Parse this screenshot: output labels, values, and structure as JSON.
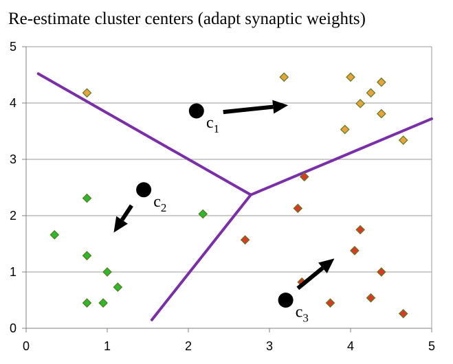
{
  "title": "Re-estimate cluster centers (adapt synaptic weights)",
  "colors": {
    "orange": "#E8A33C",
    "red": "#D93A26",
    "green": "#2DB82D",
    "marker_edge": "#5A7A1E",
    "boundary": "#7A2FA8",
    "arrow": "#000000",
    "grid": "#999999"
  },
  "chart_data": {
    "type": "scatter",
    "title": "Re-estimate cluster centers (adapt synaptic weights)",
    "xlim": [
      0,
      5
    ],
    "ylim": [
      0,
      5
    ],
    "x_ticks": [
      0,
      1,
      2,
      3,
      4,
      5
    ],
    "y_ticks": [
      0,
      1,
      2,
      3,
      4,
      5
    ],
    "grid": "horizontal",
    "series": [
      {
        "color": "orange",
        "points": [
          [
            0.75,
            4.18
          ],
          [
            3.18,
            4.46
          ],
          [
            4.0,
            4.46
          ],
          [
            4.38,
            4.37
          ],
          [
            4.25,
            4.18
          ],
          [
            4.12,
            3.99
          ],
          [
            4.38,
            3.81
          ],
          [
            3.93,
            3.53
          ],
          [
            4.65,
            3.34
          ]
        ]
      },
      {
        "color": "green",
        "points": [
          [
            0.75,
            2.31
          ],
          [
            2.18,
            2.03
          ],
          [
            0.35,
            1.66
          ],
          [
            0.75,
            1.29
          ],
          [
            1.0,
            1.0
          ],
          [
            1.13,
            0.73
          ],
          [
            0.75,
            0.45
          ],
          [
            0.95,
            0.45
          ]
        ]
      },
      {
        "color": "red",
        "points": [
          [
            3.43,
            2.69
          ],
          [
            3.35,
            2.13
          ],
          [
            4.12,
            1.75
          ],
          [
            2.7,
            1.57
          ],
          [
            4.05,
            1.38
          ],
          [
            4.38,
            1.0
          ],
          [
            3.4,
            0.82
          ],
          [
            3.75,
            0.45
          ],
          [
            4.25,
            0.54
          ],
          [
            4.65,
            0.26
          ]
        ]
      }
    ],
    "centers": [
      {
        "label": "c",
        "sub": "1",
        "x": 2.1,
        "y": 3.86,
        "label_dx": 0.12,
        "label_dy": -0.3
      },
      {
        "label": "c",
        "sub": "2",
        "x": 1.45,
        "y": 2.46,
        "label_dx": 0.12,
        "label_dy": -0.3
      },
      {
        "label": "c",
        "sub": "3",
        "x": 3.2,
        "y": 0.5,
        "label_dx": 0.12,
        "label_dy": -0.3
      }
    ],
    "arrows": [
      {
        "from": [
          2.43,
          3.84
        ],
        "to": [
          3.23,
          3.96
        ]
      },
      {
        "from": [
          1.3,
          2.18
        ],
        "to": [
          1.08,
          1.7
        ]
      },
      {
        "from": [
          3.35,
          0.71
        ],
        "to": [
          3.8,
          1.24
        ]
      }
    ],
    "boundaries": [
      [
        [
          0.15,
          4.52
        ],
        [
          2.77,
          2.37
        ]
      ],
      [
        [
          2.77,
          2.37
        ],
        [
          5.0,
          3.72
        ]
      ],
      [
        [
          2.77,
          2.37
        ],
        [
          1.55,
          0.15
        ]
      ]
    ]
  }
}
